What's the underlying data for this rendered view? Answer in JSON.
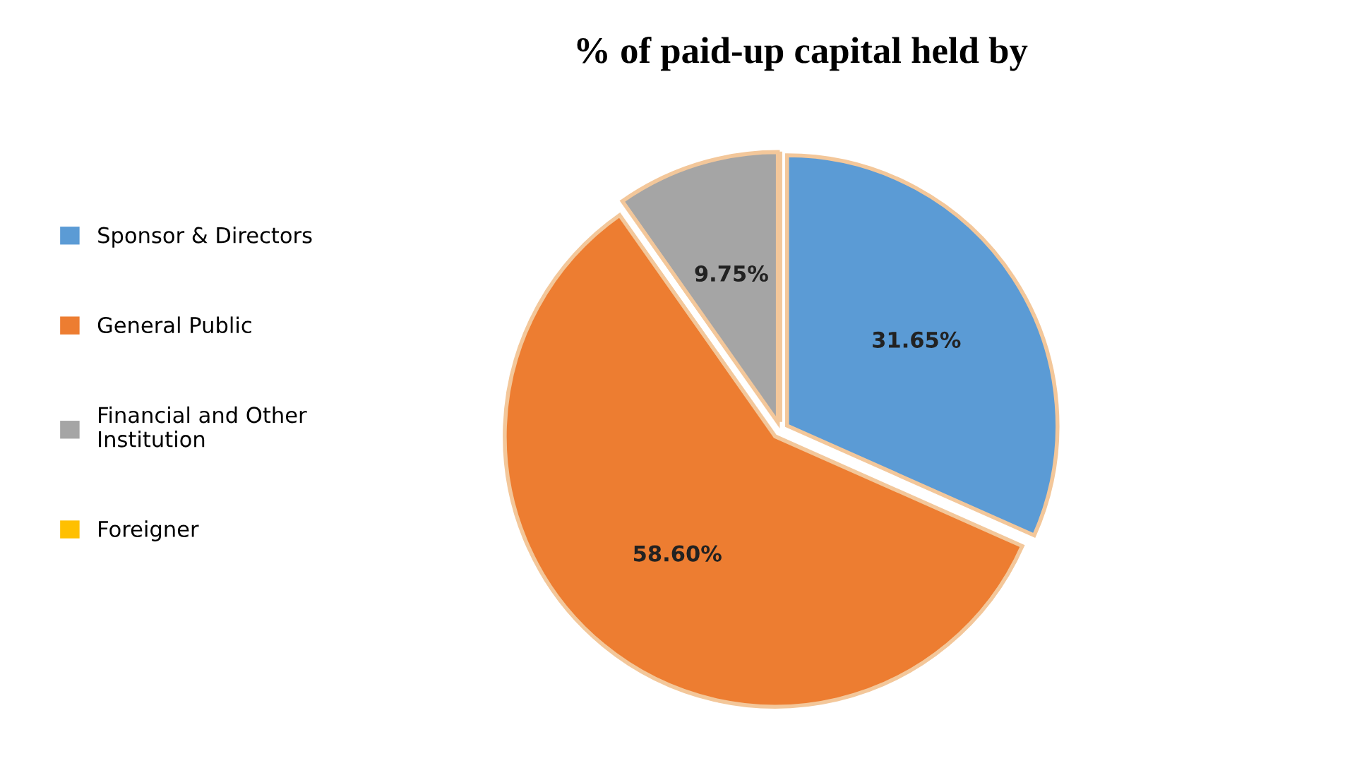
{
  "chart_data": {
    "type": "pie",
    "title": "% of paid-up capital held by",
    "categories": [
      "Sponsor & Directors",
      "General Public",
      "Financial and Other\nInstitution",
      "Foreigner"
    ],
    "values": [
      31.65,
      58.6,
      9.75,
      0
    ],
    "value_labels": [
      "31.65%",
      "58.60%",
      "9.75%",
      null
    ],
    "colors": [
      "#5b9bd5",
      "#ed7d31",
      "#a5a5a5",
      "#ffc000"
    ],
    "legend": "left"
  }
}
